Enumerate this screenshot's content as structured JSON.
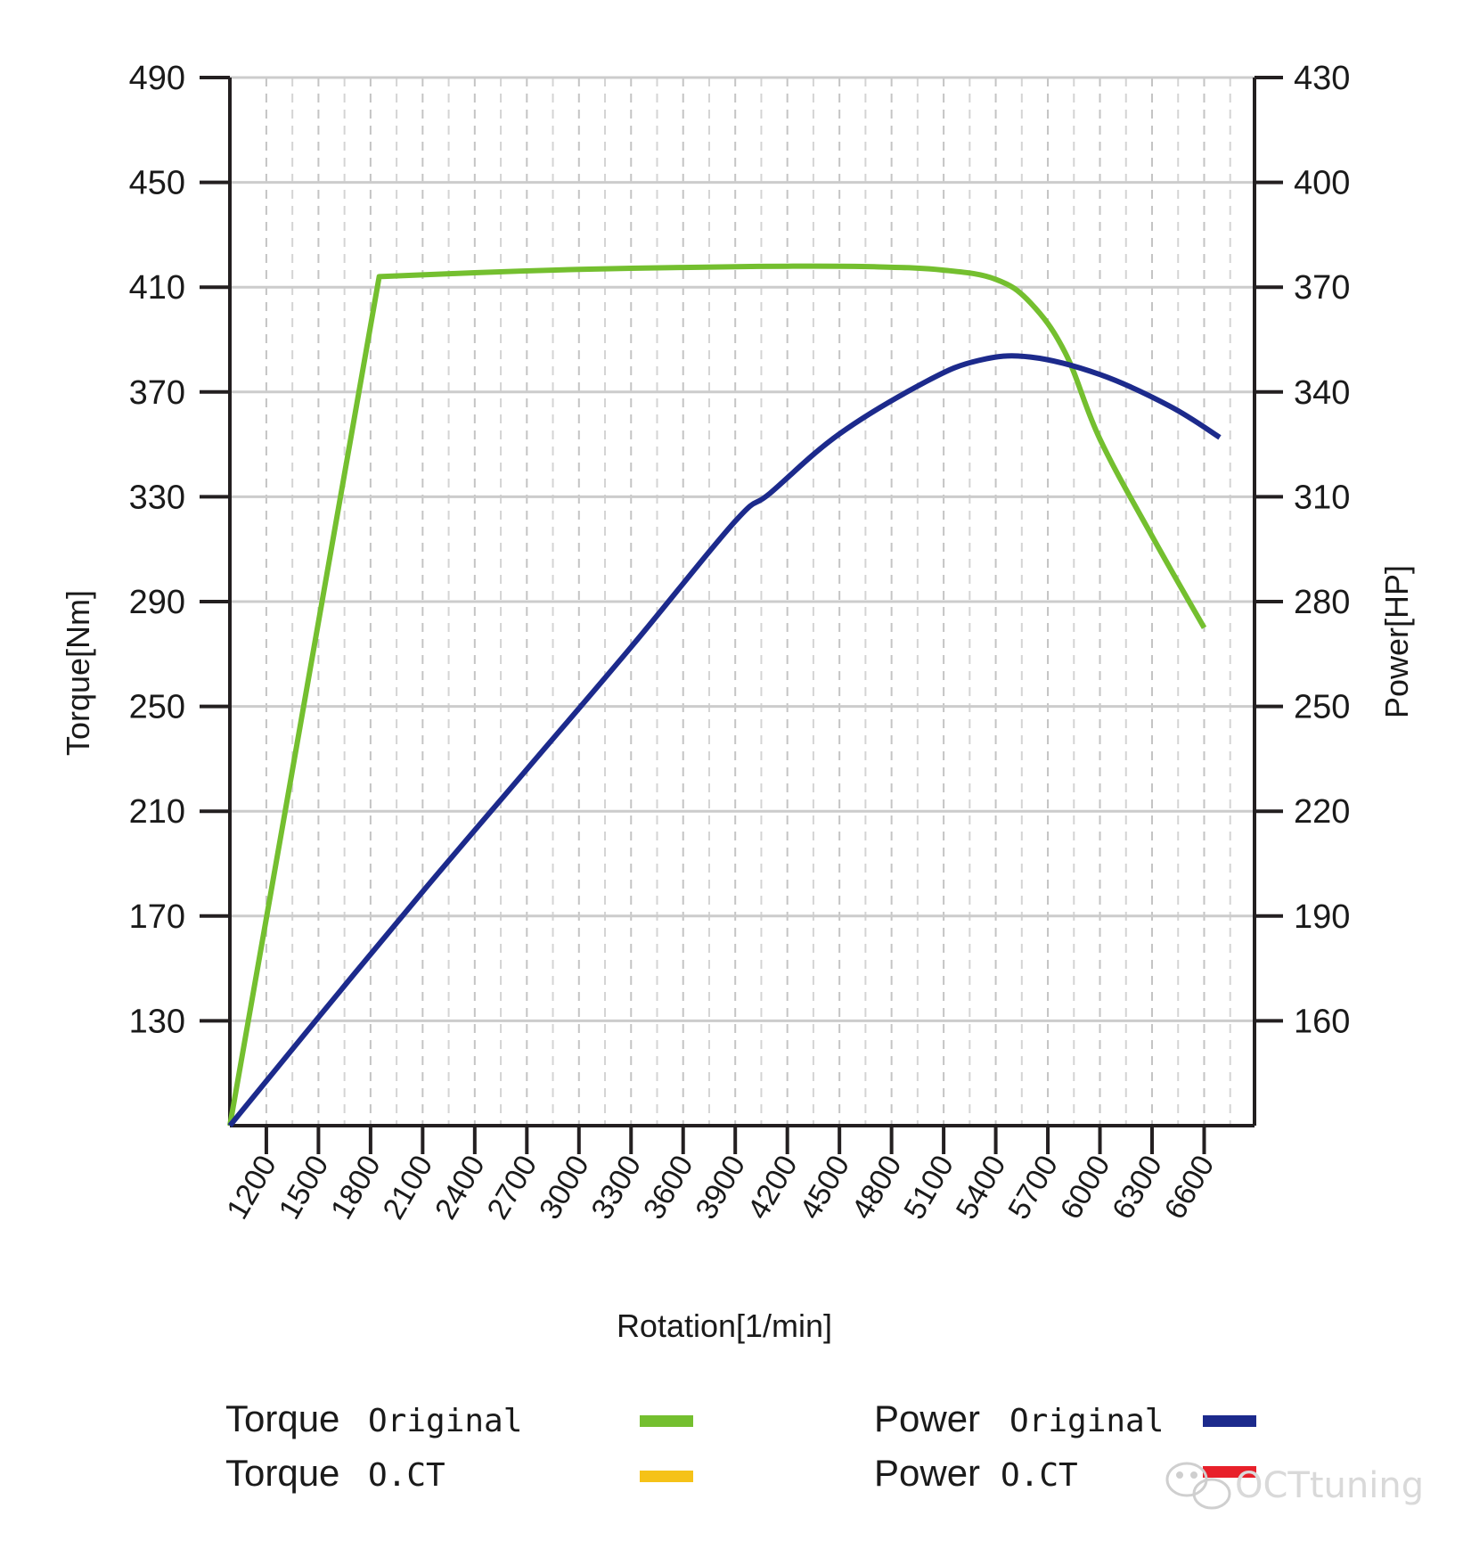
{
  "chart_data": {
    "type": "line",
    "title": "",
    "xlabel": "Rotation[1/min]",
    "ylabel_left": "Torque[Nm]",
    "ylabel_right": "Power[HP]",
    "xlim": [
      990,
      6890
    ],
    "ylim_left": [
      90,
      490
    ],
    "ylim_right": [
      130,
      430
    ],
    "x_ticks": [
      "1200",
      "1500",
      "1800",
      "2100",
      "2400",
      "2700",
      "3000",
      "3300",
      "3600",
      "3900",
      "4200",
      "4500",
      "4800",
      "5100",
      "5400",
      "5700",
      "6000",
      "6300",
      "6600"
    ],
    "y_left_ticks": [
      "490",
      "450",
      "410",
      "370",
      "330",
      "290",
      "250",
      "210",
      "170",
      "130"
    ],
    "y_right_ticks": [
      "430",
      "400",
      "370",
      "340",
      "310",
      "280",
      "250",
      "220",
      "190",
      "160"
    ],
    "grid": true,
    "series": [
      {
        "name": "Torque Original",
        "axis": "left",
        "color": "#74bf2f",
        "x": [
          990,
          1850,
          2400,
          3000,
          3600,
          4200,
          4700,
          5100,
          5400,
          5600,
          5800,
          6000,
          6300,
          6600
        ],
        "y": [
          90,
          414,
          415.5,
          416.8,
          417.5,
          418,
          417.8,
          416.5,
          413,
          404,
          385,
          352,
          315,
          280
        ]
      },
      {
        "name": "Power Original",
        "axis": "right",
        "color": "#1c2a8c",
        "x": [
          990,
          1500,
          2100,
          2700,
          3300,
          3900,
          4100,
          4500,
          5000,
          5300,
          5600,
          6000,
          6400,
          6690
        ],
        "y": [
          130,
          161,
          197,
          232,
          267,
          303,
          311,
          328,
          343,
          349,
          350,
          345,
          336,
          327
        ]
      }
    ],
    "legend": [
      {
        "name": "Torque",
        "sub": "Original",
        "color": "#74bf2f"
      },
      {
        "name": "Torque",
        "sub": "O.CT",
        "color": "#f5c218"
      },
      {
        "name": "Power",
        "sub": "Original",
        "color": "#1c2a8c"
      },
      {
        "name": "Power",
        "sub": "O.CT",
        "color": "#e8202a"
      }
    ]
  },
  "watermark": {
    "text": "OCTtuning",
    "icon": "wechat-icon"
  }
}
